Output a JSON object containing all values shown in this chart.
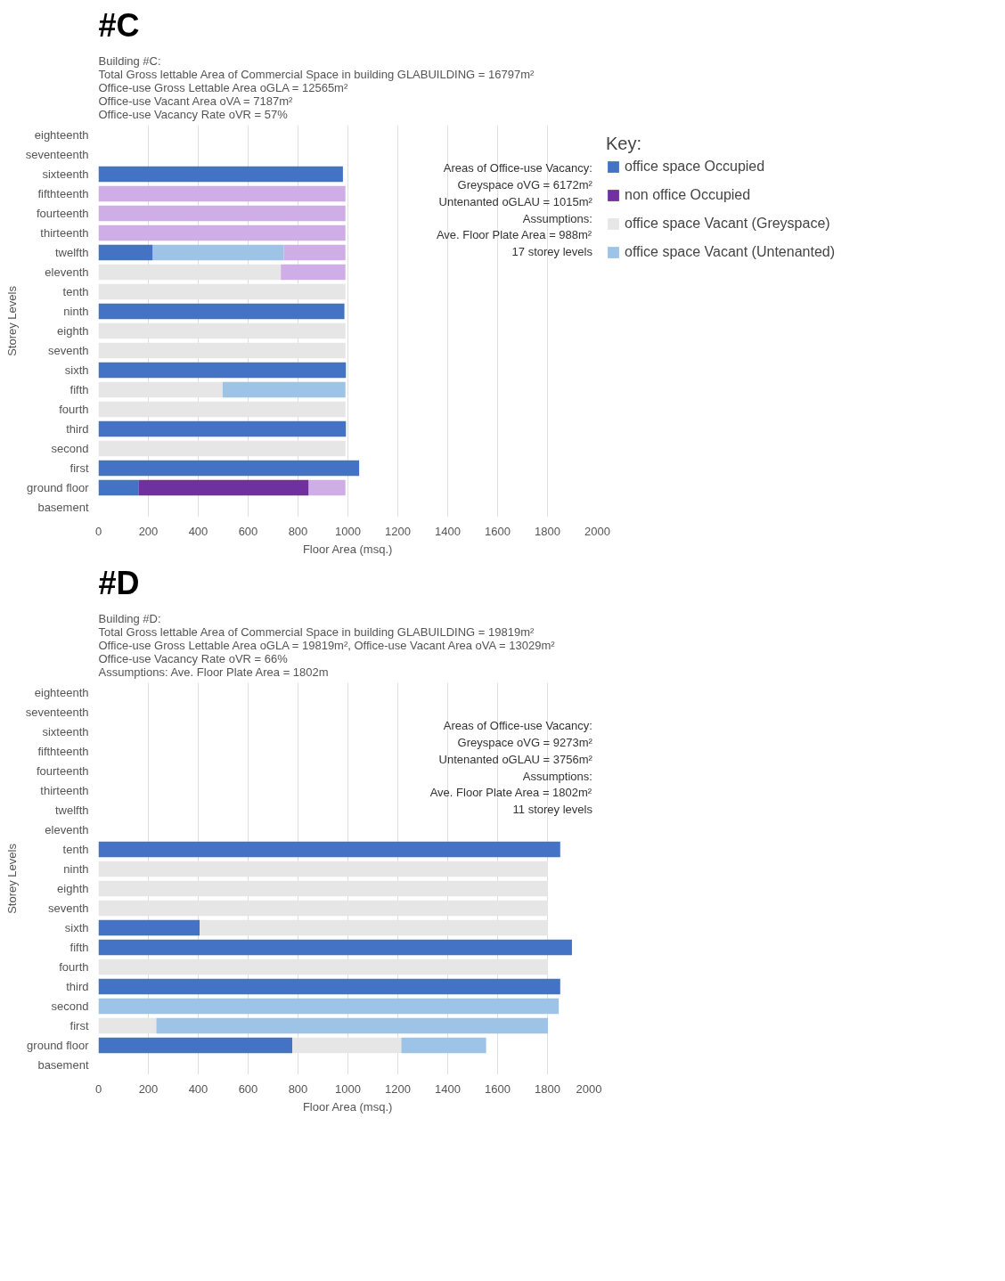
{
  "chart_data": [
    {
      "type": "bar",
      "orientation": "horizontal",
      "stacked": true,
      "title": "#C",
      "subtitle": "Building #C:\nTotal Gross lettable Area of Commercial Space in building GLABUILDING = 16797m²\nOffice-use Gross Lettable Area oGLA = 12565m²\nOffice-use Vacant Area oVA = 7187m²\nOffice-use Vacancy Rate oVR = 57%",
      "xlabel": "Floor Area (msq.)",
      "ylabel": "Storey Levels",
      "categories": [
        "eighteenth",
        "seventeenth",
        "sixteenth",
        "fifthteenth",
        "fourteenth",
        "thirteenth",
        "twelfth",
        "eleventh",
        "tenth",
        "ninth",
        "eighth",
        "seventh",
        "sixth",
        "fifth",
        "fourth",
        "third",
        "second",
        "first",
        "ground floor",
        "basement"
      ],
      "series": [
        {
          "name": "office space Occupied",
          "color": "#4472c4",
          "values": [
            null,
            null,
            980,
            null,
            null,
            null,
            218,
            null,
            null,
            986,
            null,
            null,
            992,
            null,
            null,
            992,
            null,
            1045,
            162,
            null
          ]
        },
        {
          "name": "non office Occupied",
          "color": "#7030a0",
          "values": [
            null,
            null,
            null,
            null,
            null,
            null,
            null,
            null,
            null,
            null,
            null,
            null,
            null,
            null,
            null,
            null,
            null,
            null,
            681,
            null
          ]
        },
        {
          "name": "office space Vacant (Greyspace)",
          "color": "#e7e6e6",
          "values": [
            null,
            null,
            null,
            null,
            null,
            null,
            null,
            731,
            990,
            null,
            990,
            990,
            null,
            498,
            990,
            null,
            990,
            null,
            null,
            null
          ]
        },
        {
          "name": "office space Vacant (Untenanted)",
          "color": "#9dc3e6",
          "values": [
            null,
            null,
            null,
            null,
            null,
            null,
            525,
            null,
            null,
            null,
            null,
            null,
            null,
            492,
            null,
            null,
            null,
            null,
            null,
            null
          ]
        },
        {
          "color": "#cfaee8",
          "values": [
            null,
            null,
            null,
            990,
            990,
            990,
            247,
            259,
            null,
            null,
            null,
            null,
            null,
            null,
            null,
            null,
            null,
            null,
            147,
            null
          ]
        }
      ],
      "xlim": [
        0,
        2000
      ],
      "xticks": [
        0,
        200,
        400,
        600,
        800,
        1000,
        1200,
        1400,
        1600,
        1800,
        2000
      ],
      "grid": "x",
      "legend": "right",
      "legend_title": "Key:",
      "annotations": [
        "Areas of Office-use Vacancy:",
        "Greyspace oVG = 6172m²",
        "Untenanted oGLAU = 1015m²",
        "Assumptions:",
        "Ave. Floor Plate Area = 988m²",
        "17 storey levels"
      ]
    },
    {
      "type": "bar",
      "orientation": "horizontal",
      "stacked": true,
      "title": "#D",
      "subtitle": "Building #D:\nTotal Gross lettable Area of Commercial Space in building GLABUILDING = 19819m²\nOffice-use Gross Lettable Area oGLA = 19819m², Office-use Vacant Area oVA = 13029m²\nOffice-use Vacancy Rate oVR = 66%\nAssumptions: Ave. Floor Plate Area = 1802m",
      "xlabel": "Floor Area (msq.)",
      "ylabel": "Storey Levels",
      "categories": [
        "eighteenth",
        "seventeenth",
        "sixteenth",
        "fifthteenth",
        "fourteenth",
        "thirteenth",
        "twelfth",
        "eleventh",
        "tenth",
        "ninth",
        "eighth",
        "seventh",
        "sixth",
        "fifth",
        "fourth",
        "third",
        "second",
        "first",
        "ground floor",
        "basement"
      ],
      "series": [
        {
          "color": "#4472c4",
          "values": [
            null,
            null,
            null,
            null,
            null,
            null,
            null,
            null,
            1851,
            null,
            null,
            null,
            406,
            1898,
            null,
            1851,
            null,
            null,
            777,
            null
          ]
        },
        {
          "color": "#e7e6e6",
          "values": [
            null,
            null,
            null,
            null,
            null,
            null,
            null,
            null,
            null,
            1802,
            1802,
            1802,
            1396,
            null,
            1802,
            null,
            null,
            232,
            437,
            null
          ]
        },
        {
          "color": "#9dc3e6",
          "values": [
            null,
            null,
            null,
            null,
            null,
            null,
            null,
            null,
            null,
            null,
            null,
            null,
            null,
            null,
            null,
            null,
            1845,
            1570,
            340,
            null
          ]
        }
      ],
      "xlim": [
        0,
        2000
      ],
      "xticks": [
        0,
        200,
        400,
        600,
        800,
        1000,
        1200,
        1400,
        1600,
        1800,
        2000
      ],
      "grid": "x",
      "annotations": [
        "Areas of Office-use Vacancy:",
        "Greyspace oVG = 9273m²",
        "Untenanted oGLAU = 3756m²",
        "Assumptions:",
        "Ave. Floor Plate Area = 1802m²",
        "11 storey levels"
      ]
    }
  ]
}
